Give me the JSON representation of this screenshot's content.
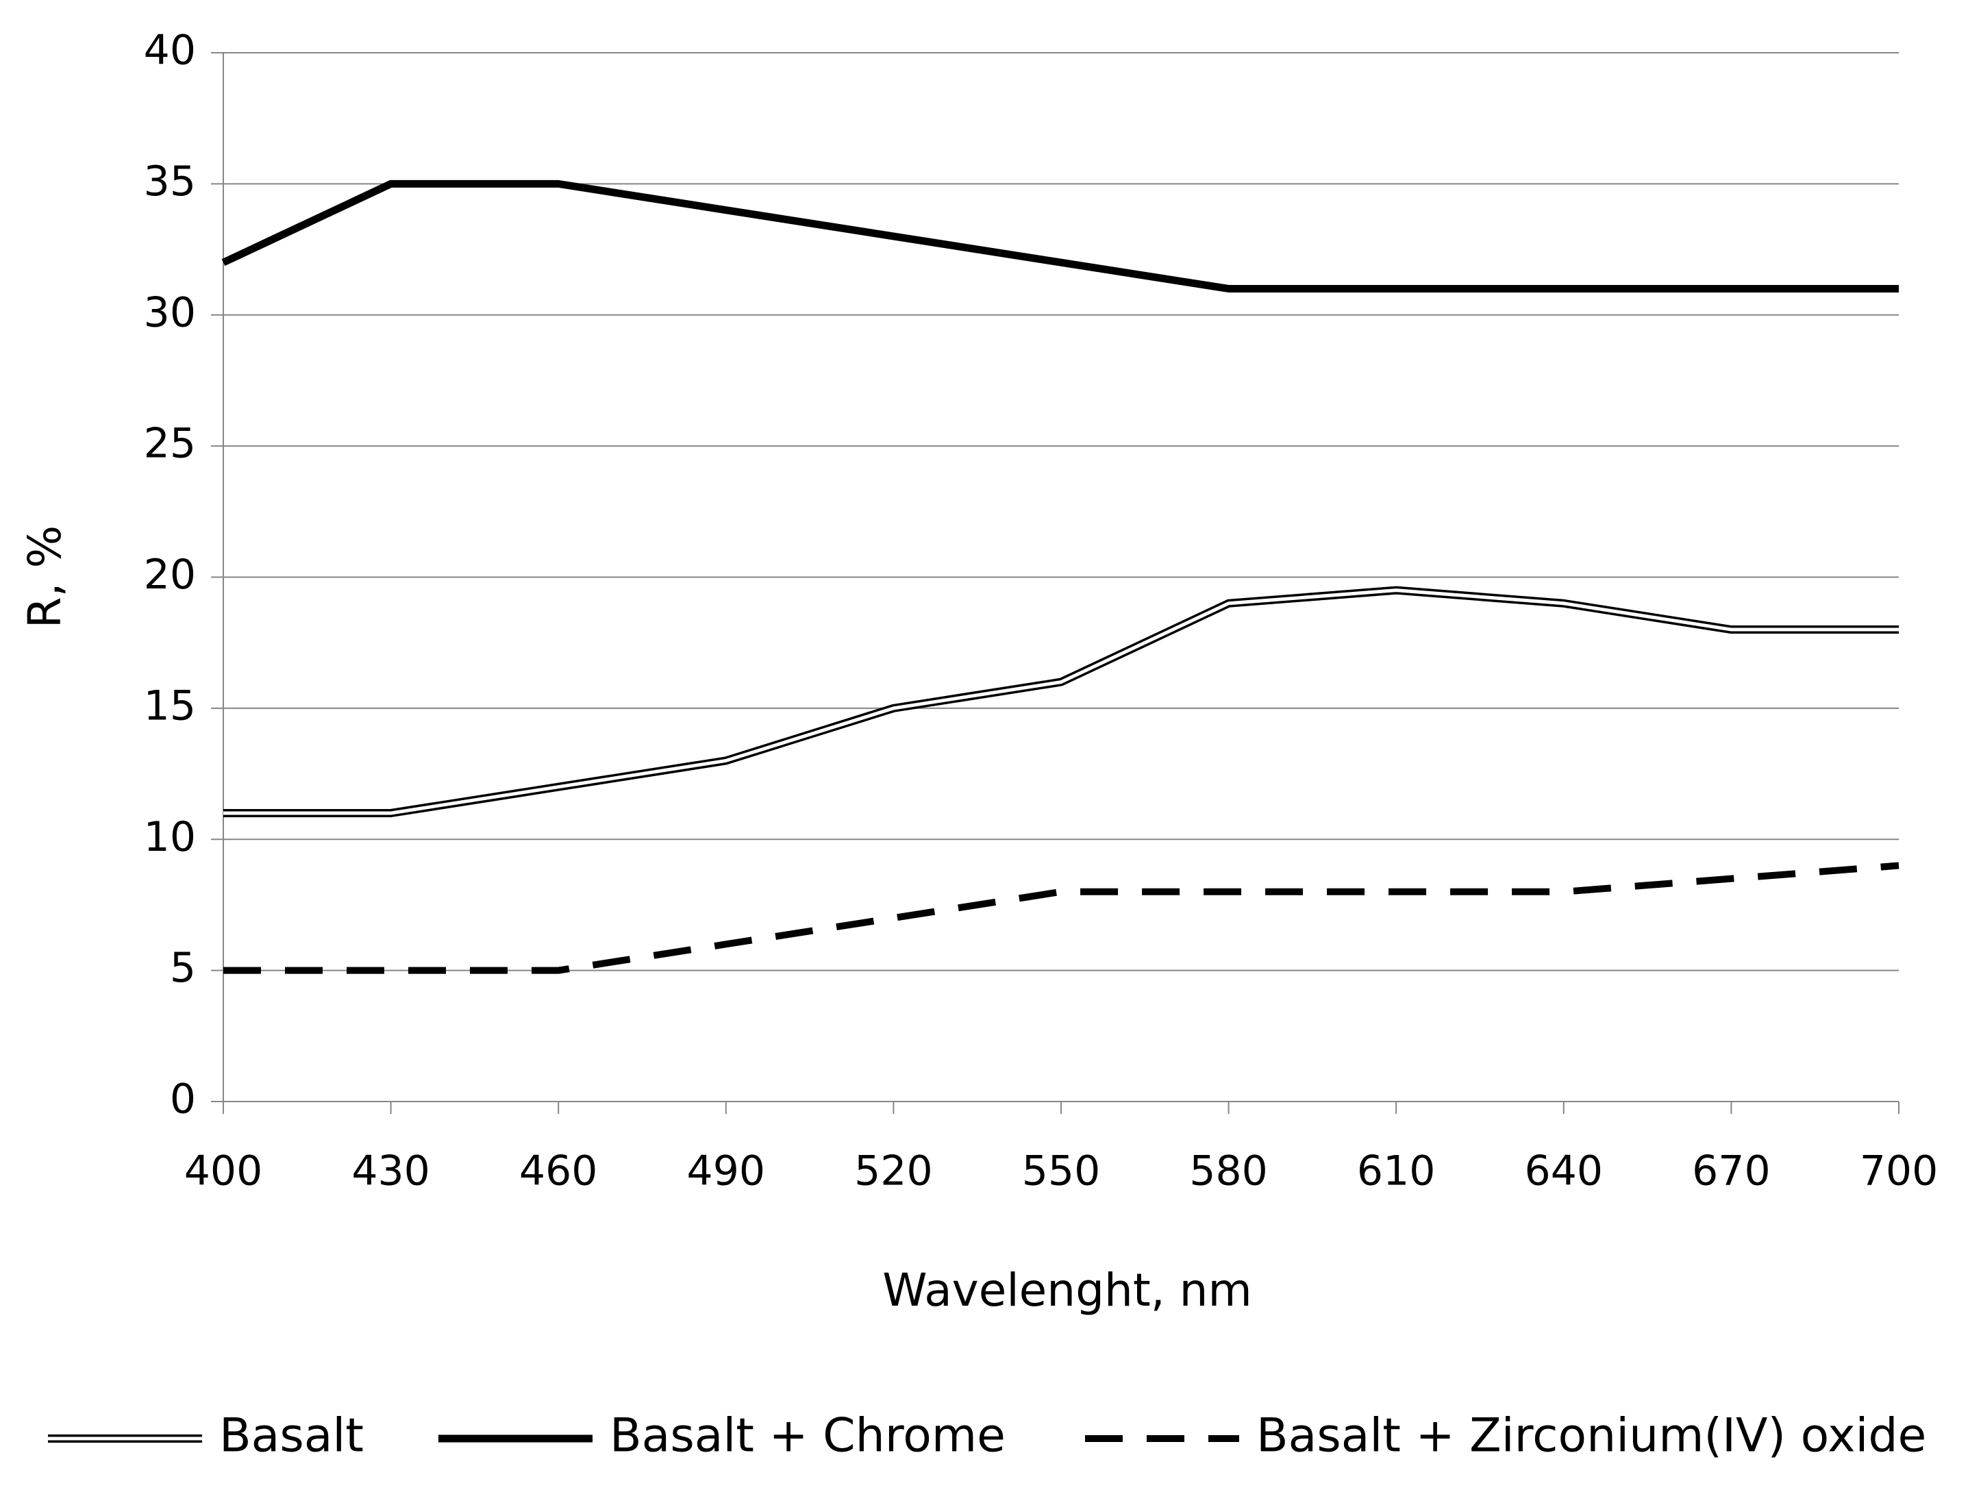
{
  "chart_data": {
    "type": "line",
    "x_label": "Wavelenght, nm",
    "y_label": "R, %",
    "x": [
      400,
      430,
      460,
      490,
      520,
      550,
      580,
      610,
      640,
      670,
      700
    ],
    "xlim": [
      400,
      700
    ],
    "xticks": [
      400,
      430,
      460,
      490,
      520,
      550,
      580,
      610,
      640,
      670,
      700
    ],
    "ylim": [
      0,
      40
    ],
    "yticks": [
      0,
      5,
      10,
      15,
      20,
      25,
      30,
      35,
      40
    ],
    "grid": true,
    "legend": "bottom",
    "series": [
      {
        "name": "Basalt",
        "color": "#000000",
        "style": "double",
        "values": [
          11,
          11,
          12,
          13,
          15,
          16,
          19,
          19.5,
          19,
          18,
          18
        ]
      },
      {
        "name": "Basalt + Chrome",
        "color": "#000000",
        "style": "solid",
        "values": [
          32,
          35,
          35,
          34,
          33,
          32,
          31,
          31,
          31,
          31,
          31
        ]
      },
      {
        "name": "Basalt + Zirconium(IV) oxide",
        "color": "#000000",
        "style": "dashed",
        "values": [
          5,
          5,
          5,
          6,
          7,
          8,
          8,
          8,
          8,
          8.5,
          9
        ]
      }
    ]
  }
}
